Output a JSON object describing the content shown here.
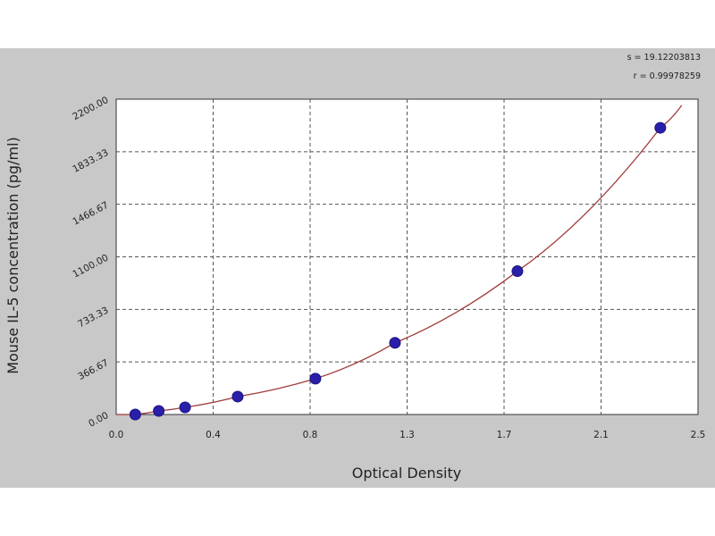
{
  "chart_data": {
    "type": "scatter",
    "stats": [
      "s = 19.12203813",
      "r = 0.99978259"
    ],
    "xlabel": "Optical Density",
    "ylabel": "Mouse IL-5 concentration (pg/ml)",
    "xlim": [
      0.0,
      2.5
    ],
    "ylim": [
      0,
      2200
    ],
    "x_ticks": [
      "0.0",
      "0.4",
      "0.8",
      "1.3",
      "1.7",
      "2.1",
      "2.5"
    ],
    "y_ticks": [
      "0.00",
      "366.67",
      "733.33",
      "1100.00",
      "1466.67",
      "1833.33",
      "2200.00"
    ],
    "grid": true,
    "series": [
      {
        "x": [
          0.082,
          0.183,
          0.296,
          0.522,
          0.856,
          1.198,
          1.724,
          2.338
        ],
        "y": [
          0,
          25,
          50,
          125,
          250,
          500,
          1000,
          2000
        ],
        "color": "#2a1fa8"
      }
    ],
    "fit_curve_color": "#a23b3b"
  }
}
